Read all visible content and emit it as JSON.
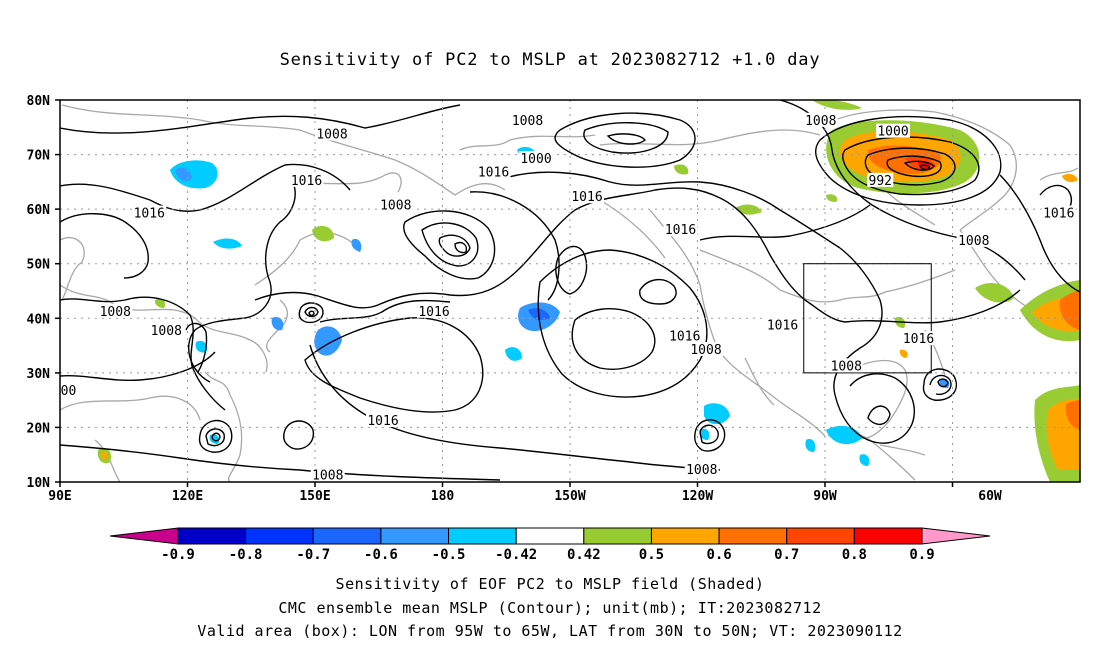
{
  "title": "Sensitivity of PC2 to MSLP at 2023082712 +1.0 day",
  "map": {
    "lat_labels": [
      "80N",
      "70N",
      "60N",
      "50N",
      "40N",
      "30N",
      "20N",
      "10N"
    ],
    "lon_labels": [
      "90E",
      "120E",
      "150E",
      "180",
      "150W",
      "120W",
      "90W",
      "60W"
    ],
    "lon_range": [
      90,
      330
    ],
    "lat_range": [
      10,
      80
    ],
    "valid_box": {
      "lon_w": -95,
      "lon_e": -65,
      "lat_s": 30,
      "lat_n": 50
    },
    "contour_labels": [
      {
        "text": "1008",
        "lon": 154,
        "lat": 73.5
      },
      {
        "text": "1016",
        "lon": 148,
        "lat": 65
      },
      {
        "text": "1016",
        "lon": 111,
        "lat": 59
      },
      {
        "text": "1008",
        "lon": 169,
        "lat": 60.5
      },
      {
        "text": "1008",
        "lon": 115,
        "lat": 37.5
      },
      {
        "text": "1008",
        "lon": 103,
        "lat": 41
      },
      {
        "text": "00",
        "lon": 92,
        "lat": 26.5
      },
      {
        "text": "1008",
        "lon": 200,
        "lat": 76
      },
      {
        "text": "1000",
        "lon": 202,
        "lat": 69
      },
      {
        "text": "1016",
        "lon": 192,
        "lat": 66.5
      },
      {
        "text": "1016",
        "lon": 214,
        "lat": 62
      },
      {
        "text": "1016",
        "lon": 236,
        "lat": 56
      },
      {
        "text": "1016",
        "lon": 178,
        "lat": 41
      },
      {
        "text": "1016",
        "lon": 166,
        "lat": 21
      },
      {
        "text": "1008",
        "lon": 153,
        "lat": 11
      },
      {
        "text": "1008",
        "lon": 241,
        "lat": 12
      },
      {
        "text": "1016",
        "lon": 237,
        "lat": 36.5
      },
      {
        "text": "1008",
        "lon": 242,
        "lat": 34
      },
      {
        "text": "1016",
        "lon": 260,
        "lat": 38.5
      },
      {
        "text": "1008",
        "lon": 275,
        "lat": 31
      },
      {
        "text": "1016",
        "lon": 292,
        "lat": 36
      },
      {
        "text": "1008",
        "lon": 269,
        "lat": 76
      },
      {
        "text": "1000",
        "lon": 286,
        "lat": 74
      },
      {
        "text": "992",
        "lon": 283,
        "lat": 65
      },
      {
        "text": "1008",
        "lon": 305,
        "lat": 54
      },
      {
        "text": "1016",
        "lon": 325,
        "lat": 59
      }
    ]
  },
  "colorbar": {
    "labels": [
      "-0.9",
      "-0.8",
      "-0.7",
      "-0.6",
      "-0.5",
      "-0.42",
      "0.42",
      "0.5",
      "0.6",
      "0.7",
      "0.8",
      "0.9"
    ],
    "colors": [
      "#0000c8",
      "#0033ff",
      "#1a66ff",
      "#3399ff",
      "#00ccff",
      "#ffffff",
      "#99cc33",
      "#ffa500",
      "#ff7000",
      "#ff4500",
      "#ff0000"
    ],
    "under_color": "#c8008c",
    "over_color": "#ff99cc"
  },
  "captions": [
    "Sensitivity of EOF PC2 to MSLP field (Shaded)",
    "CMC ensemble mean MSLP (Contour); unit(mb); IT:2023082712",
    "Valid area (box): LON from 95W to 65W, LAT from 30N to 50N; VT: 2023090112"
  ]
}
